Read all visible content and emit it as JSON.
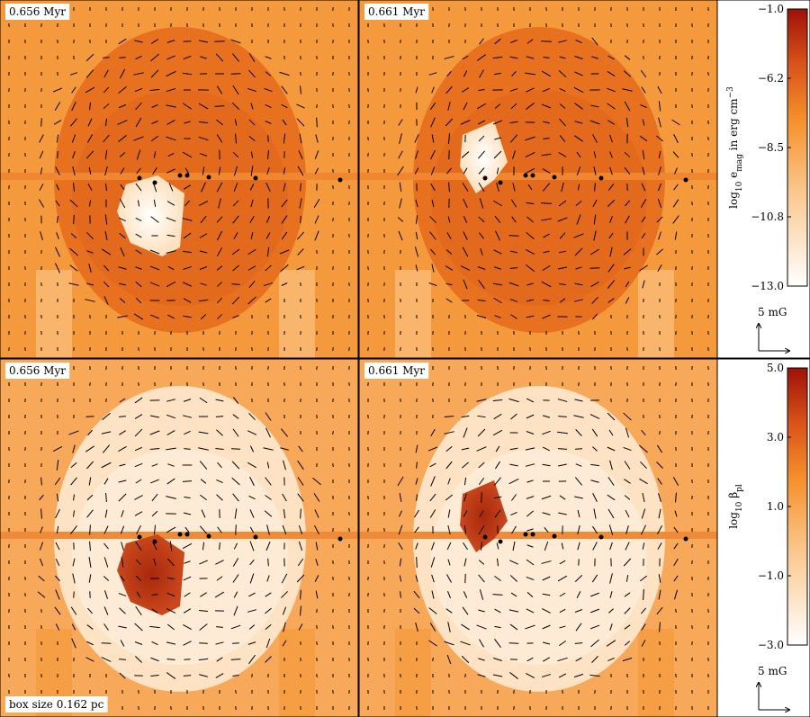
{
  "panels": [
    {
      "label": "0.656 Myr"
    },
    {
      "label": "0.661 Myr"
    },
    {
      "label": "0.656 Myr",
      "note": "box size 0.162 pc"
    },
    {
      "label": "0.661 Myr"
    }
  ],
  "colorbars": [
    {
      "label": [
        {
          "text": "log"
        },
        {
          "text": "10",
          "sub": true
        },
        {
          "text": " e"
        },
        {
          "text": "mag",
          "sub": true
        },
        {
          "text": " in erg cm"
        },
        {
          "text": "−3",
          "sup": true
        }
      ],
      "ticks": [
        {
          "value": -1,
          "label": "−1.0"
        },
        {
          "value": -6.2,
          "label": "−6.2"
        },
        {
          "value": -8.5,
          "label": "−8.5"
        },
        {
          "value": -10.8,
          "label": "−10.8"
        },
        {
          "value": -13,
          "label": "−13.0"
        }
      ],
      "scale_label": "5 mG"
    },
    {
      "label": [
        {
          "text": "log"
        },
        {
          "text": "10",
          "sub": true
        },
        {
          "text": " β"
        },
        {
          "text": "pl",
          "sub": true
        }
      ],
      "ticks": [
        {
          "value": 5,
          "label": "5.0"
        },
        {
          "value": 3,
          "label": "3.0"
        },
        {
          "value": 1,
          "label": "1.0"
        },
        {
          "value": -1,
          "label": "−1.0"
        },
        {
          "value": -3,
          "label": "−3.0"
        }
      ],
      "scale_label": "5 mG"
    }
  ]
}
